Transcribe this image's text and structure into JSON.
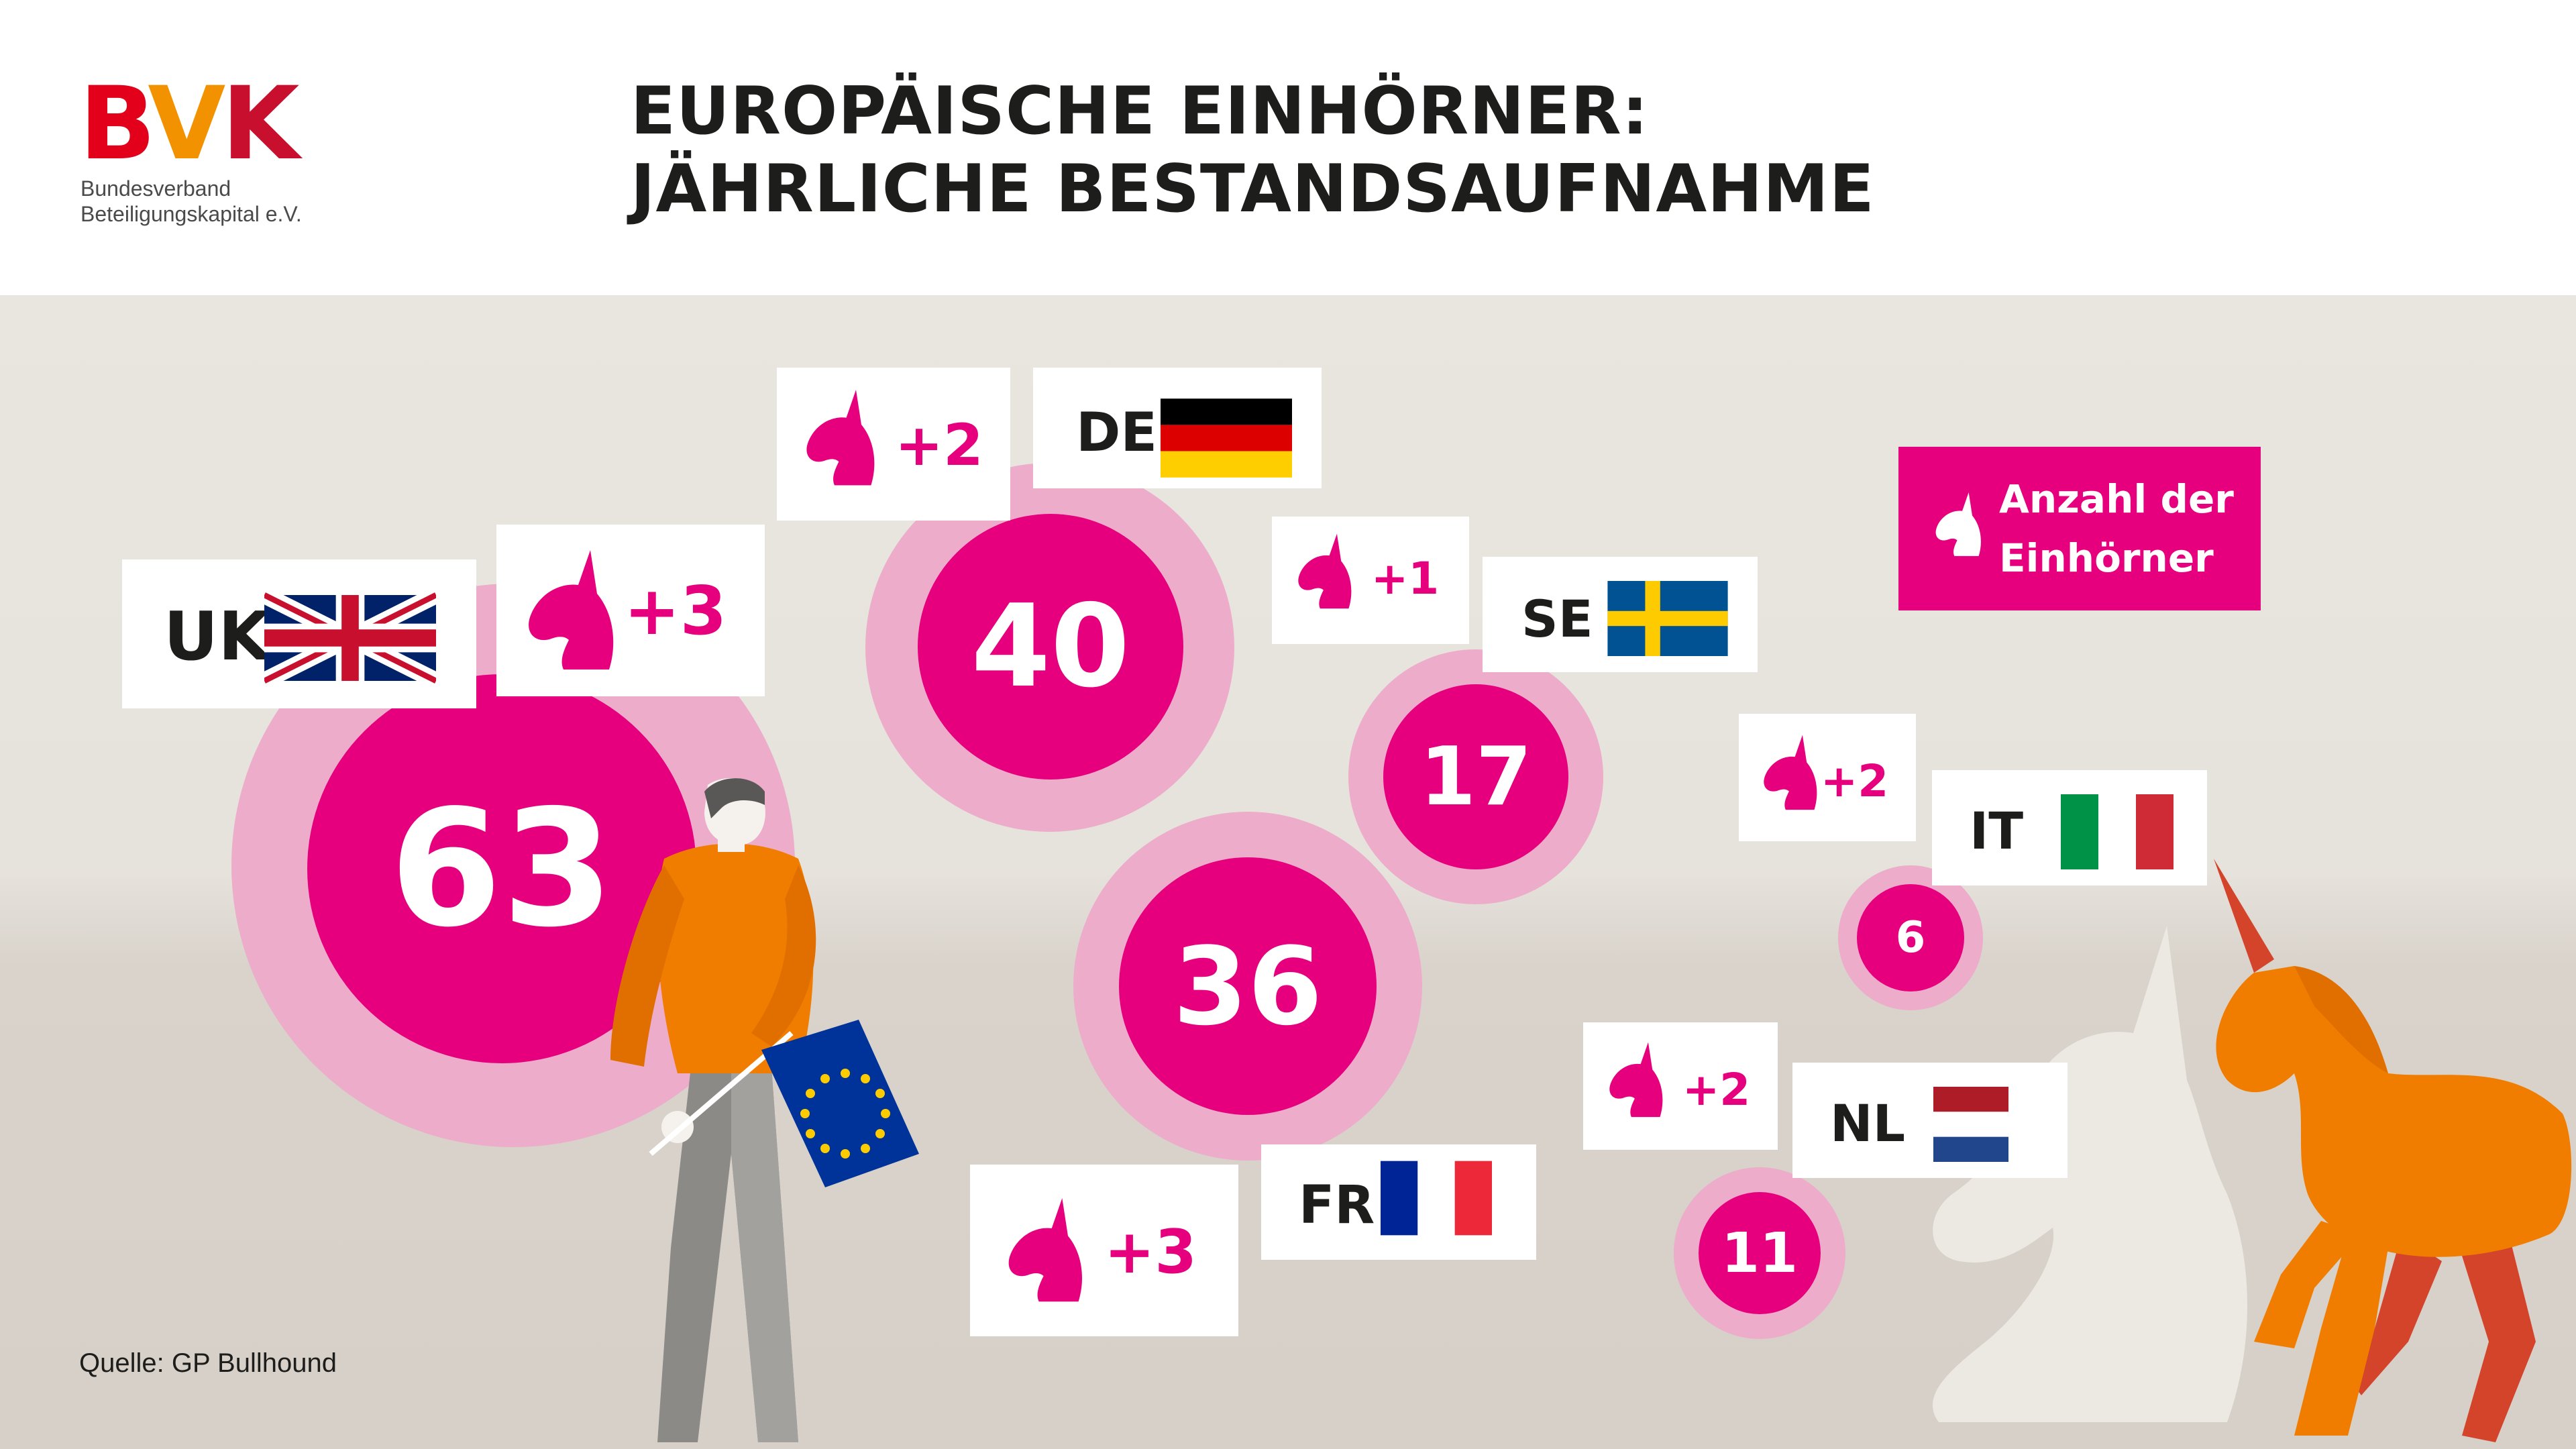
{
  "header": {
    "logo_b": "B",
    "logo_v": "V",
    "logo_k": "K",
    "logo_line1": "Bundesverband",
    "logo_line2": "Beteiligungskapital e.V.",
    "title_line1": "EUROPÄISCHE EINHÖRNER:",
    "title_line2": "JÄHRLICHE BESTANDSAUFNAHME"
  },
  "legend": {
    "line1": "Anzahl der",
    "line2": "Einhörner"
  },
  "countries": [
    {
      "code": "UK",
      "count": "63",
      "delta": "+3"
    },
    {
      "code": "DE",
      "count": "40",
      "delta": "+2"
    },
    {
      "code": "FR",
      "count": "36",
      "delta": "+3"
    },
    {
      "code": "SE",
      "count": "17",
      "delta": "+1"
    },
    {
      "code": "NL",
      "count": "11",
      "delta": "+2"
    },
    {
      "code": "IT",
      "count": "6",
      "delta": "+2"
    }
  ],
  "colors": {
    "magenta": "#e6007e",
    "ring": "#ecacca",
    "orange": "#f07d00",
    "background": "#e6e2dc"
  },
  "source": "Quelle: GP Bullhound"
}
